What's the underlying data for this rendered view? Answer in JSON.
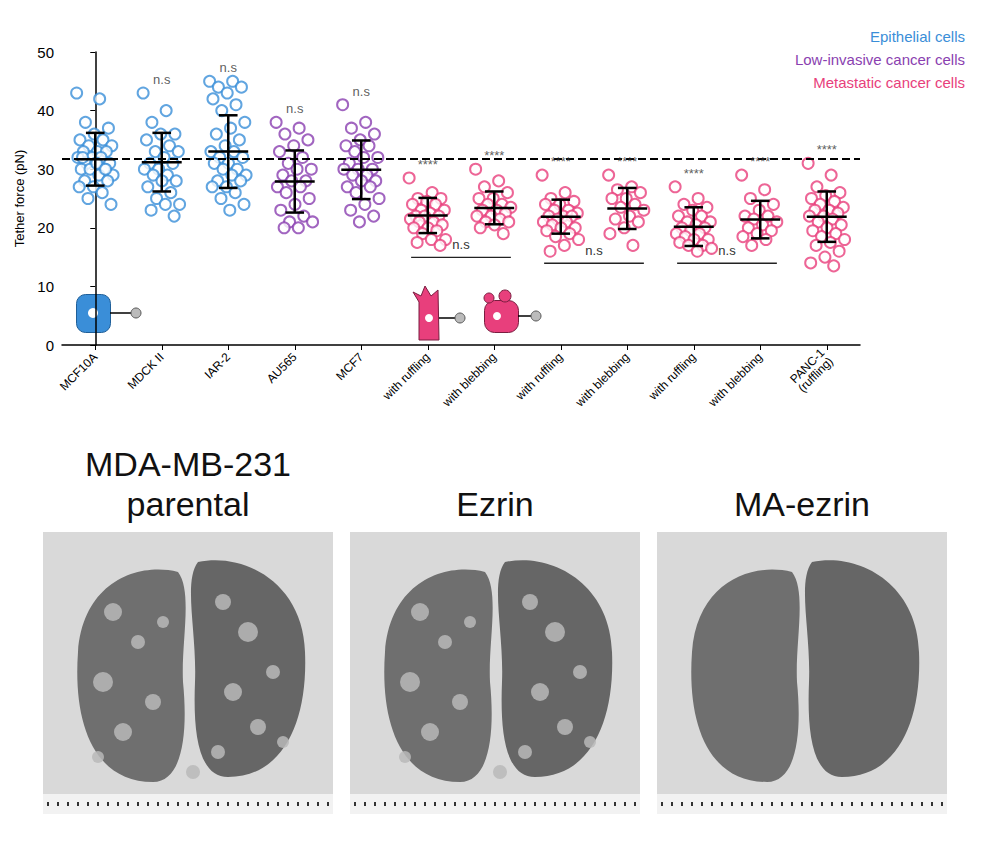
{
  "chart_data": {
    "type": "scatter",
    "y_label": "Tether force (pN)",
    "categories": [
      "MCF10A",
      "MDCK II",
      "IAR-2",
      "AU565",
      "MCF7",
      "with ruffling",
      "with blebbing",
      "with ruffling",
      "with blebbing",
      "with ruffling",
      "with blebbing",
      "PANC-1 (ruffling)"
    ],
    "ylim": [
      0,
      50
    ],
    "yticks": [
      0,
      10,
      20,
      30,
      40,
      50
    ],
    "grid": false,
    "legend": "top-right",
    "marker": "hollow circle",
    "reference_line": 31.7,
    "series": [
      {
        "name": "Epithelial cells",
        "color": "#3a8ed8"
      },
      {
        "name": "Low-invasive cancer cells",
        "color": "#8a3fb0"
      },
      {
        "name": "Metastatic cancer cells",
        "color": "#e83f7c"
      }
    ],
    "groups": [
      {
        "series": "Epithelial cells",
        "mean": 31.7,
        "sd": 4.5,
        "values": [
          43,
          42,
          38,
          37,
          36,
          35,
          35,
          34,
          34,
          33,
          33,
          33,
          32,
          32,
          32,
          31,
          31,
          31,
          30,
          30,
          30,
          29,
          29,
          28,
          28,
          27,
          27,
          26,
          25,
          24,
          31,
          32,
          30
        ]
      },
      {
        "series": "Epithelial cells",
        "mean": 31.2,
        "sd": 5.0,
        "significance": "n.s",
        "values": [
          43,
          40,
          38,
          36,
          36,
          35,
          34,
          33,
          33,
          32,
          31,
          31,
          30,
          30,
          29,
          29,
          28,
          28,
          27,
          26,
          25,
          24,
          24,
          23,
          22
        ]
      },
      {
        "series": "Epithelial cells",
        "mean": 33.0,
        "sd": 6.2,
        "significance": "n.s",
        "values": [
          45,
          45,
          44,
          44,
          43,
          42,
          41,
          40,
          38,
          37,
          36,
          35,
          34,
          33,
          33,
          32,
          32,
          31,
          31,
          30,
          30,
          29,
          29,
          28,
          28,
          27,
          27,
          26,
          25,
          24,
          23
        ]
      },
      {
        "series": "Low-invasive cancer cells",
        "mean": 27.9,
        "sd": 5.3,
        "significance": "n.s",
        "values": [
          38,
          37,
          36,
          35,
          34,
          33,
          32,
          31,
          30,
          30,
          29,
          28,
          28,
          27,
          27,
          26,
          25,
          24,
          23,
          22,
          21,
          21,
          20,
          20
        ]
      },
      {
        "series": "Low-invasive cancer cells",
        "mean": 29.9,
        "sd": 5.0,
        "significance": "n.s",
        "values": [
          41,
          38,
          37,
          36,
          35,
          34,
          34,
          33,
          32,
          32,
          31,
          30,
          30,
          30,
          29,
          29,
          28,
          28,
          27,
          27,
          26,
          25,
          24,
          23,
          22,
          21
        ]
      },
      {
        "series": "Metastatic cancer cells",
        "mean": 22.1,
        "sd": 3.0,
        "significance": "****",
        "values": [
          28.5,
          26,
          25,
          25,
          24.5,
          24,
          24,
          23,
          23,
          22.5,
          22,
          22,
          22,
          21.5,
          21,
          21,
          20.5,
          20,
          20,
          19.5,
          19,
          18,
          18,
          17.5,
          17
        ]
      },
      {
        "series": "Metastatic cancer cells",
        "mean": 23.4,
        "sd": 2.8,
        "significance": "****",
        "values": [
          30,
          28,
          27,
          26,
          25,
          25,
          24,
          24,
          23.5,
          23,
          23,
          22.5,
          22,
          22,
          21.5,
          21,
          21,
          20.5,
          20,
          19
        ]
      },
      {
        "series": "Metastatic cancer cells",
        "mean": 21.9,
        "sd": 2.9,
        "significance": "****",
        "values": [
          29,
          26,
          25,
          24.5,
          24,
          24,
          23,
          23,
          22.5,
          22,
          22,
          22,
          21.5,
          21,
          21,
          20.5,
          20,
          20,
          19.5,
          19,
          18.5,
          18,
          17,
          16
        ]
      },
      {
        "series": "Metastatic cancer cells",
        "mean": 23.3,
        "sd": 3.5,
        "significance": "****",
        "values": [
          29,
          27,
          26.5,
          26,
          25,
          25,
          24,
          23.5,
          23,
          22,
          21.5,
          21,
          20,
          19,
          17
        ]
      },
      {
        "series": "Metastatic cancer cells",
        "mean": 20.2,
        "sd": 3.3,
        "significance": "****",
        "values": [
          27,
          25,
          24,
          23.5,
          23,
          22,
          22,
          21,
          21,
          20.5,
          20,
          20,
          19.5,
          19,
          19,
          18.5,
          18,
          18,
          17.5,
          17,
          17,
          16.5,
          16
        ]
      },
      {
        "series": "Metastatic cancer cells",
        "mean": 21.4,
        "sd": 3.2,
        "significance": "****",
        "values": [
          29,
          26.5,
          25,
          24,
          23,
          22,
          22,
          21.5,
          21,
          20.5,
          20,
          19.5,
          19,
          18.5,
          18,
          17
        ]
      },
      {
        "series": "Metastatic cancer cells",
        "mean": 21.9,
        "sd": 4.3,
        "significance": "****",
        "values": [
          31,
          29,
          27,
          26,
          25.5,
          25,
          24.5,
          24,
          23.5,
          23,
          23,
          22.5,
          22,
          22,
          21.5,
          21,
          20.5,
          20,
          19.5,
          19,
          18.5,
          18,
          17.5,
          17,
          16,
          15,
          14,
          13.5
        ]
      }
    ],
    "comparisons": [
      {
        "categories": [
          5,
          6
        ],
        "label": "n.s"
      },
      {
        "categories": [
          7,
          8
        ],
        "label": "n.s"
      },
      {
        "categories": [
          9,
          10
        ],
        "label": "n.s"
      }
    ]
  },
  "images": [
    {
      "title": "MDA-MB-231 parental",
      "nodules": true
    },
    {
      "title": "Ezrin",
      "nodules": true
    },
    {
      "title": "MA-ezrin",
      "nodules": false
    }
  ]
}
